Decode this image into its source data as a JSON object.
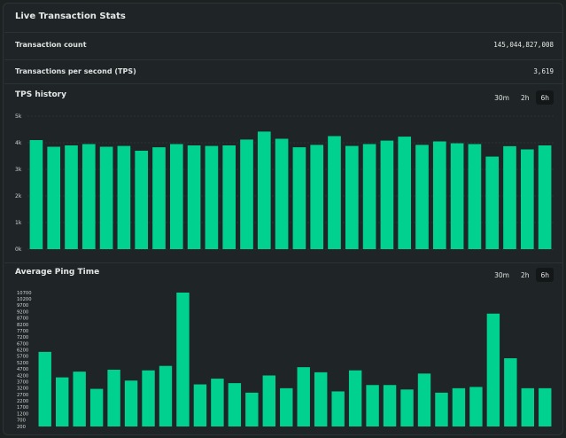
{
  "header": {
    "title": "Live Transaction Stats"
  },
  "stats": [
    {
      "label": "Transaction count",
      "value": "145,044,827,008"
    },
    {
      "label": "Transactions per second (TPS)",
      "value": "3,619"
    }
  ],
  "colors": {
    "bar": "#00d18f",
    "background": "#1f2526",
    "grid": "#3a4243"
  },
  "tps_history": {
    "title": "TPS history",
    "timeframes": [
      "30m",
      "2h",
      "6h"
    ],
    "active_timeframe": "6h"
  },
  "ping_time": {
    "title": "Average Ping Time",
    "timeframes": [
      "30m",
      "2h",
      "6h"
    ],
    "active_timeframe": "6h"
  },
  "chart_data": [
    {
      "type": "bar",
      "title": "TPS history",
      "ylim": [
        0,
        5000
      ],
      "yticks": [
        0,
        1000,
        2000,
        3000,
        4000,
        5000
      ],
      "ytick_labels": [
        "0k",
        "1k",
        "2k",
        "3k",
        "4k",
        "5k"
      ],
      "values": [
        4100,
        3850,
        3900,
        3950,
        3850,
        3880,
        3700,
        3830,
        3950,
        3900,
        3880,
        3900,
        4120,
        4420,
        4150,
        3830,
        3920,
        4250,
        3880,
        3950,
        4080,
        4230,
        3920,
        4050,
        3980,
        3950,
        3480,
        3870,
        3750,
        3900
      ],
      "grid": true
    },
    {
      "type": "bar",
      "title": "Average Ping Time",
      "ylim": [
        200,
        10700
      ],
      "yticks": [
        200,
        700,
        1200,
        1700,
        2200,
        2700,
        3200,
        3700,
        4200,
        4700,
        5200,
        5700,
        6200,
        6700,
        7200,
        7700,
        8200,
        8700,
        9200,
        9700,
        10200,
        10700
      ],
      "ytick_labels": [
        "200",
        "700",
        "1200",
        "1700",
        "2200",
        "2700",
        "3200",
        "3700",
        "4200",
        "4700",
        "5200",
        "5700",
        "6200",
        "6700",
        "7200",
        "7700",
        "8200",
        "8700",
        "9200",
        "9700",
        "10200",
        "10700"
      ],
      "values": [
        6050,
        4050,
        4500,
        3150,
        4650,
        3800,
        4600,
        4950,
        10700,
        3500,
        3950,
        3600,
        2850,
        4200,
        3200,
        4850,
        4450,
        2950,
        4600,
        3450,
        3450,
        3100,
        4350,
        2850,
        3200,
        3300,
        9050,
        5550,
        3200,
        3200
      ],
      "grid": false
    }
  ]
}
